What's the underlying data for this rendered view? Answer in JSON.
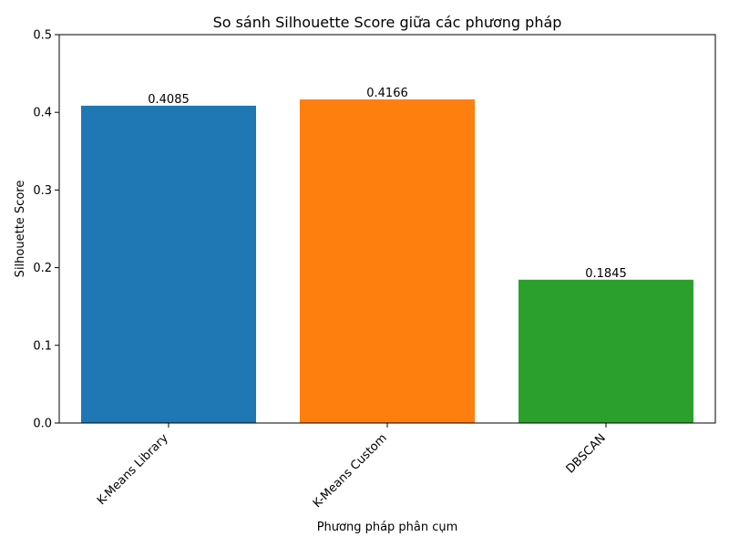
{
  "chart_data": {
    "type": "bar",
    "title": "So sánh Silhouette Score giữa các phương pháp",
    "xlabel": "Phương pháp phân cụm",
    "ylabel": "Silhouette Score",
    "categories": [
      "K-Means Library",
      "K-Means Custom",
      "DBSCAN"
    ],
    "values": [
      0.4085,
      0.4166,
      0.1845
    ],
    "value_labels": [
      "0.4085",
      "0.4166",
      "0.1845"
    ],
    "colors": [
      "#1f77b4",
      "#ff7f0e",
      "#2ca02c"
    ],
    "ylim": [
      0,
      0.5
    ],
    "yticks": [
      0.0,
      0.1,
      0.2,
      0.3,
      0.4,
      0.5
    ],
    "ytick_labels": [
      "0.0",
      "0.1",
      "0.2",
      "0.3",
      "0.4",
      "0.5"
    ],
    "grid": false,
    "legend": "none",
    "xtick_rotation": "45 degrees, right-aligned"
  }
}
